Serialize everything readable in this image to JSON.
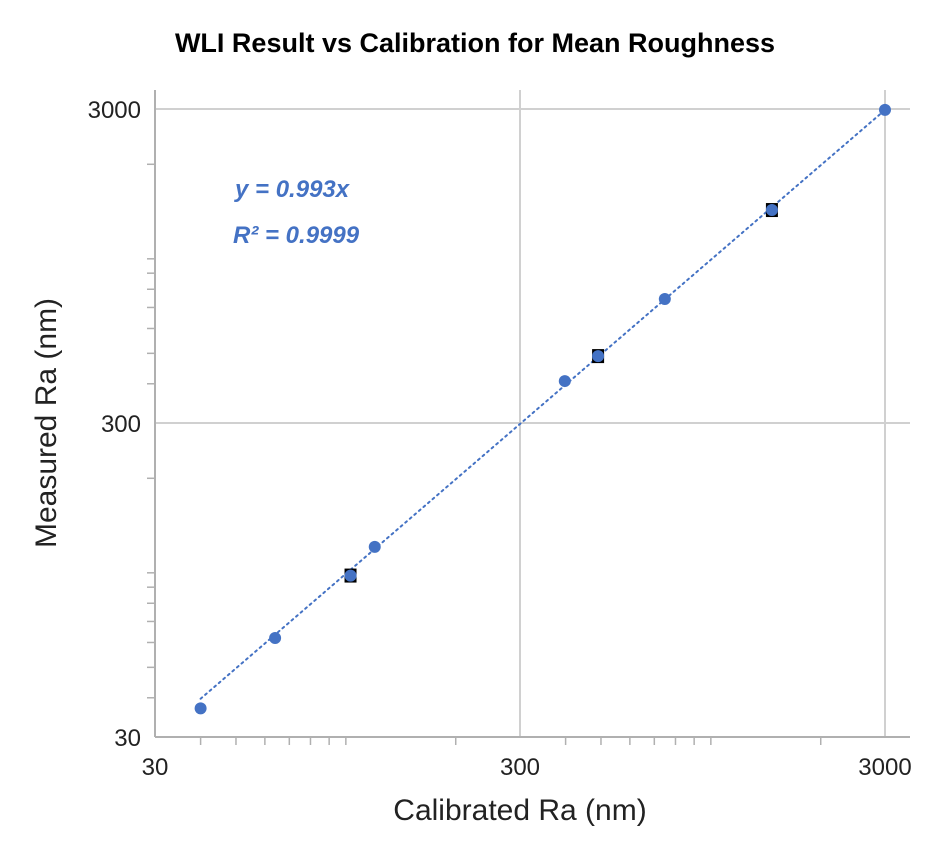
{
  "chart_data": {
    "type": "scatter",
    "title": "WLI Result vs Calibration for Mean Roughness",
    "xlabel": "Calibrated Ra (nm)",
    "ylabel": "Measured Ra (nm)",
    "xscale": "log",
    "yscale": "log",
    "xlim": [
      30,
      3000
    ],
    "ylim": [
      30,
      3000
    ],
    "xticks": [
      "30",
      "300",
      "3000"
    ],
    "yticks": [
      "30",
      "300",
      "3000"
    ],
    "grid": true,
    "points": [
      {
        "x": 40,
        "y": 37
      },
      {
        "x": 64,
        "y": 62
      },
      {
        "x": 103,
        "y": 98
      },
      {
        "x": 120,
        "y": 121
      },
      {
        "x": 398,
        "y": 408
      },
      {
        "x": 491,
        "y": 490
      },
      {
        "x": 748,
        "y": 745
      },
      {
        "x": 1470,
        "y": 1430
      },
      {
        "x": 3000,
        "y": 2980
      }
    ],
    "error_bar_points": [
      2,
      5,
      7
    ],
    "trendline": {
      "slope": 0.993,
      "style": "dotted"
    },
    "annotations": {
      "equation": "y = 0.993x",
      "r2": "R² = 0.9999"
    },
    "colors": {
      "marker": "#4472C4",
      "trendline": "#4472C4",
      "annotation": "#4472C4",
      "error_bar": "#000000",
      "grid": "#d0d0d0"
    }
  }
}
